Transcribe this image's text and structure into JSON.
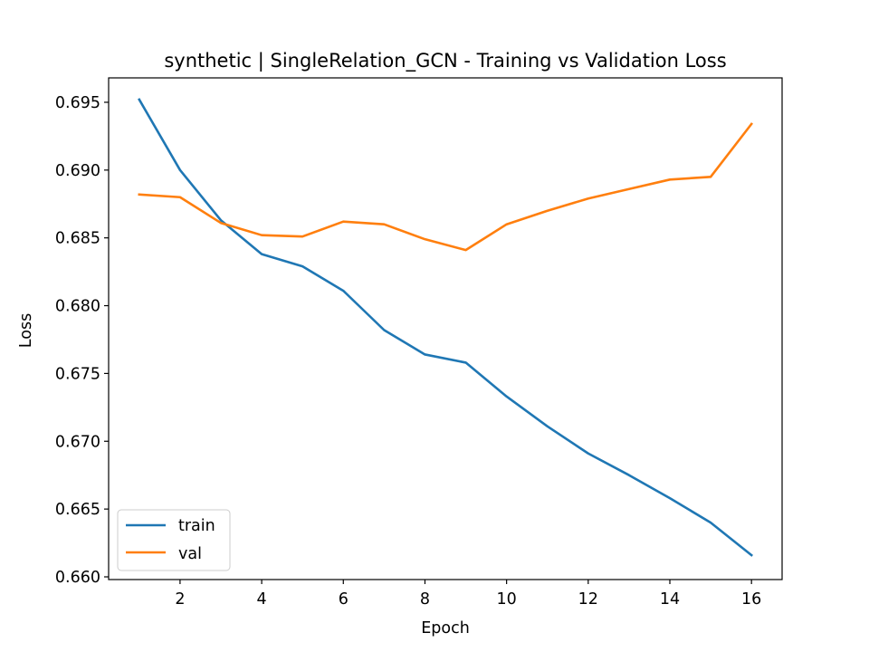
{
  "chart_data": {
    "type": "line",
    "title": "synthetic | SingleRelation_GCN - Training vs Validation Loss",
    "xlabel": "Epoch",
    "ylabel": "Loss",
    "x": [
      1,
      2,
      3,
      4,
      5,
      6,
      7,
      8,
      9,
      10,
      11,
      12,
      13,
      14,
      15,
      16
    ],
    "xlim": [
      0.25,
      16.75
    ],
    "ylim": [
      0.6598,
      0.6968
    ],
    "xticks": [
      2,
      4,
      6,
      8,
      10,
      12,
      14,
      16
    ],
    "xtick_labels": [
      "2",
      "4",
      "6",
      "8",
      "10",
      "12",
      "14",
      "16"
    ],
    "yticks": [
      0.66,
      0.665,
      0.67,
      0.675,
      0.68,
      0.685,
      0.69,
      0.695
    ],
    "ytick_labels": [
      "0.660",
      "0.665",
      "0.670",
      "0.675",
      "0.680",
      "0.685",
      "0.690",
      "0.695"
    ],
    "grid": false,
    "legend_position": "lower-left",
    "series": [
      {
        "name": "train",
        "color": "#1f77b4",
        "values": [
          0.6952,
          0.69,
          0.6863,
          0.6838,
          0.6829,
          0.6811,
          0.6782,
          0.6764,
          0.6758,
          0.6733,
          0.6711,
          0.6691,
          0.6675,
          0.6658,
          0.664,
          0.6616
        ]
      },
      {
        "name": "val",
        "color": "#ff7f0e",
        "values": [
          0.6882,
          0.688,
          0.6861,
          0.6852,
          0.6851,
          0.6862,
          0.686,
          0.6849,
          0.6841,
          0.686,
          0.687,
          0.6879,
          0.6886,
          0.6893,
          0.6895,
          0.6934
        ]
      }
    ]
  }
}
